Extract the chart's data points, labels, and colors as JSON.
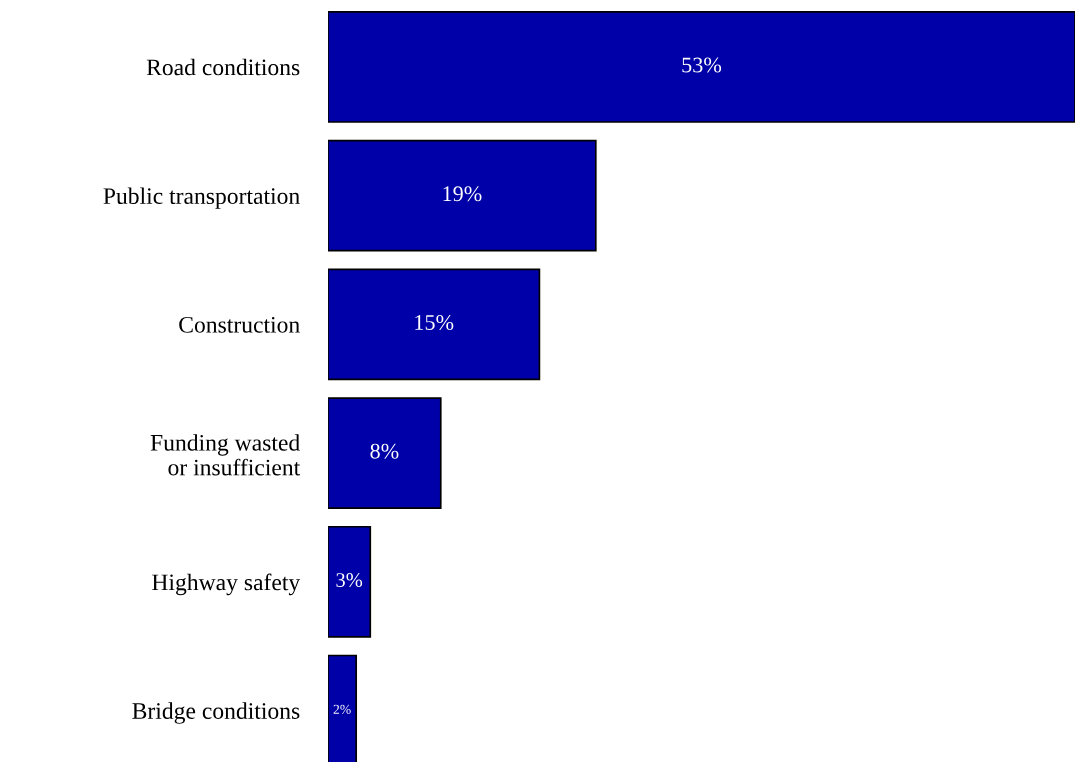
{
  "chart_data": {
    "type": "bar",
    "orientation": "horizontal",
    "categories": [
      "Road conditions",
      "Public transportation",
      "Construction",
      "Funding wasted\nor insufficient",
      "Highway safety",
      "Bridge conditions"
    ],
    "values": [
      53,
      19,
      15,
      8,
      3,
      2
    ],
    "value_labels": [
      "53%",
      "19%",
      "15%",
      "8%",
      "3%",
      "2%"
    ],
    "color": "#0000a8",
    "xlim": [
      0,
      53
    ],
    "tick_labels": "y",
    "grid": false,
    "legend": false
  }
}
